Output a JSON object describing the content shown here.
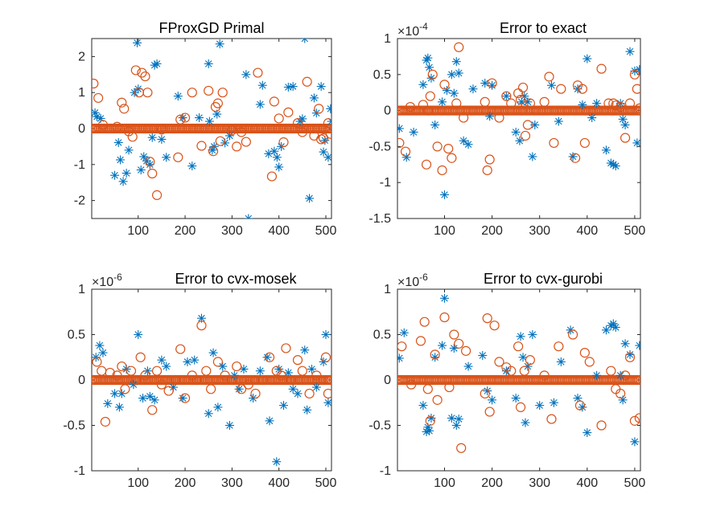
{
  "chart_data": [
    {
      "type": "scatter",
      "title": "FProxGD Primal",
      "exponent_label": "",
      "xlim": [
        1,
        512
      ],
      "ylim": [
        -2.5,
        2.5
      ],
      "xticks": [
        100,
        200,
        300,
        400,
        500
      ],
      "yticks": [
        -2,
        -1,
        0,
        1,
        2
      ],
      "ytick_labels": [
        "-2",
        "-1",
        "0",
        "1",
        "2"
      ],
      "series": [
        {
          "marker": "asterisk",
          "color": "#0072BD",
          "x": [
            8,
            12,
            20,
            50,
            58,
            62,
            68,
            75,
            80,
            92,
            98,
            100,
            106,
            112,
            118,
            125,
            130,
            135,
            140,
            150,
            160,
            185,
            195,
            215,
            230,
            250,
            252,
            258,
            262,
            268,
            274,
            285,
            295,
            330,
            335,
            360,
            365,
            378,
            390,
            396,
            400,
            405,
            420,
            430,
            445,
            450,
            455,
            465,
            475,
            480,
            490,
            495,
            498,
            505,
            510,
            512
          ],
          "y": [
            0.44,
            0.33,
            0.28,
            -1.3,
            -0.39,
            -0.87,
            -1.47,
            -1.24,
            -0.6,
            1.0,
            2.38,
            1.1,
            -1.15,
            -0.78,
            -0.9,
            -1.0,
            -0.25,
            1.76,
            1.8,
            -0.3,
            -0.8,
            0.9,
            0.3,
            -1.04,
            0.3,
            1.8,
            0.2,
            -0.6,
            -0.5,
            0.4,
            2.35,
            -0.4,
            -0.2,
            1.5,
            -2.5,
            0.67,
            1.2,
            -0.7,
            -0.63,
            -0.8,
            -1.07,
            -0.5,
            1.15,
            1.17,
            0.2,
            0.27,
            2.5,
            -1.94,
            0.85,
            0.43,
            1.17,
            -0.65,
            -0.33,
            -0.8,
            0.55,
            0.2
          ]
        },
        {
          "marker": "circle",
          "color": "#D95319",
          "x": [
            5,
            15,
            25,
            55,
            65,
            70,
            80,
            88,
            95,
            102,
            108,
            115,
            120,
            125,
            130,
            140,
            150,
            185,
            190,
            200,
            215,
            235,
            250,
            260,
            265,
            270,
            275,
            280,
            300,
            310,
            320,
            330,
            355,
            385,
            390,
            400,
            410,
            420,
            440,
            450,
            460,
            475,
            485,
            490,
            495,
            505,
            510
          ],
          "y": [
            1.25,
            0.85,
            0.1,
            0.05,
            0.72,
            0.55,
            -0.08,
            -0.23,
            1.62,
            1.0,
            1.55,
            1.45,
            1.0,
            -0.92,
            -1.25,
            -1.85,
            -0.03,
            -0.8,
            0.25,
            0.3,
            1.0,
            -0.48,
            1.05,
            -0.63,
            0.6,
            0.7,
            -0.35,
            1.0,
            -0.05,
            -0.5,
            -0.1,
            -0.37,
            1.55,
            -1.33,
            0.75,
            0.28,
            -0.38,
            0.45,
            0.15,
            -0.1,
            1.3,
            -0.2,
            0.55,
            -0.3,
            -0.27,
            0.15,
            -0.15
          ]
        }
      ]
    },
    {
      "type": "scatter",
      "title": "Error to exact",
      "exponent_label": "×10^-4",
      "xlim": [
        1,
        512
      ],
      "ylim": [
        -1.5,
        1
      ],
      "xticks": [
        100,
        200,
        300,
        400,
        500
      ],
      "yticks": [
        -1.5,
        -1,
        -0.5,
        0,
        0.5,
        1
      ],
      "ytick_labels": [
        "-1.5",
        "-1",
        "-0.5",
        "0",
        "0.5",
        "1"
      ],
      "series": [
        {
          "marker": "asterisk",
          "color": "#0072BD",
          "x": [
            5,
            20,
            35,
            55,
            62,
            65,
            68,
            72,
            80,
            95,
            100,
            105,
            115,
            120,
            125,
            130,
            140,
            150,
            160,
            185,
            195,
            200,
            230,
            250,
            258,
            262,
            268,
            275,
            285,
            290,
            325,
            340,
            370,
            380,
            390,
            400,
            410,
            420,
            440,
            450,
            455,
            460,
            470,
            475,
            480,
            490,
            500,
            505,
            510
          ],
          "y": [
            -0.25,
            -0.65,
            -0.3,
            0.36,
            0.7,
            0.73,
            0.6,
            0.45,
            -0.2,
            0.12,
            -1.17,
            0.28,
            0.5,
            0.24,
            0.68,
            0.52,
            -0.42,
            -0.47,
            0.3,
            0.38,
            -0.08,
            0.35,
            0.2,
            -0.3,
            -0.42,
            0.12,
            0.2,
            0.12,
            -0.64,
            -0.2,
            0.35,
            -0.15,
            -0.64,
            0.3,
            0.08,
            0.72,
            -0.1,
            0.1,
            -0.55,
            -0.73,
            -0.75,
            -0.77,
            0.1,
            -0.12,
            -0.2,
            0.82,
            0.55,
            -0.45,
            0.57
          ]
        },
        {
          "marker": "circle",
          "color": "#D95319",
          "x": [
            5,
            18,
            28,
            55,
            62,
            66,
            70,
            75,
            85,
            95,
            100,
            108,
            115,
            125,
            130,
            140,
            185,
            190,
            195,
            200,
            215,
            230,
            240,
            255,
            260,
            262,
            265,
            270,
            275,
            280,
            310,
            320,
            330,
            345,
            375,
            380,
            390,
            395,
            430,
            445,
            455,
            460,
            470,
            480,
            490,
            500,
            505,
            510
          ],
          "y": [
            -0.45,
            -0.57,
            0.05,
            0.08,
            -0.75,
            0.0,
            0.2,
            0.5,
            -0.5,
            -0.83,
            0.36,
            -0.53,
            -0.66,
            0.1,
            0.88,
            -0.1,
            0.12,
            -0.83,
            -0.68,
            0.38,
            -0.1,
            0.2,
            0.1,
            0.24,
            0.15,
            0.0,
            0.32,
            -0.35,
            -0.2,
            0.1,
            0.12,
            0.47,
            -0.45,
            0.3,
            -0.66,
            0.35,
            0.3,
            -0.45,
            0.58,
            0.1,
            0.1,
            0.07,
            0.05,
            -0.38,
            0.1,
            0.5,
            0.3,
            0.03
          ]
        }
      ]
    },
    {
      "type": "scatter",
      "title": "Error to cvx-mosek",
      "exponent_label": "×10^-6",
      "xlim": [
        1,
        512
      ],
      "ylim": [
        -1,
        1
      ],
      "xticks": [
        100,
        200,
        300,
        400,
        500
      ],
      "yticks": [
        -1,
        -0.5,
        0,
        0.5,
        1
      ],
      "ytick_labels": [
        "-1",
        "-0.5",
        "0",
        "0.5",
        "1"
      ],
      "series": [
        {
          "marker": "asterisk",
          "color": "#0072BD",
          "x": [
            10,
            18,
            25,
            35,
            50,
            60,
            65,
            75,
            90,
            100,
            110,
            120,
            125,
            135,
            150,
            160,
            175,
            195,
            205,
            220,
            235,
            250,
            260,
            270,
            280,
            295,
            305,
            315,
            325,
            345,
            360,
            375,
            380,
            395,
            400,
            410,
            420,
            430,
            440,
            455,
            460,
            470,
            480,
            495,
            500,
            505
          ],
          "y": [
            0.25,
            0.38,
            0.3,
            -0.26,
            -0.15,
            -0.3,
            -0.15,
            0.12,
            -0.05,
            0.5,
            -0.2,
            0.1,
            -0.18,
            -0.22,
            0.22,
            0.15,
            -0.08,
            -0.2,
            0.2,
            0.22,
            0.68,
            -0.37,
            0.3,
            -0.3,
            0.15,
            -0.5,
            0.05,
            -0.1,
            0.12,
            -0.2,
            0.1,
            0.25,
            -0.45,
            -0.9,
            0.12,
            -0.28,
            0.08,
            -0.1,
            -0.15,
            0.33,
            -0.33,
            0.12,
            -0.08,
            0.2,
            0.5,
            -0.25
          ]
        },
        {
          "marker": "circle",
          "color": "#D95319",
          "x": [
            12,
            22,
            30,
            40,
            55,
            65,
            72,
            85,
            95,
            105,
            115,
            130,
            140,
            150,
            165,
            180,
            190,
            200,
            215,
            225,
            235,
            245,
            255,
            270,
            285,
            300,
            310,
            320,
            335,
            350,
            365,
            380,
            395,
            405,
            415,
            425,
            440,
            450,
            465,
            480,
            490,
            500,
            505
          ],
          "y": [
            0.2,
            0.1,
            -0.46,
            0.08,
            0.05,
            0.15,
            -0.1,
            0.1,
            0.0,
            0.25,
            0.05,
            -0.33,
            0.1,
            -0.05,
            -0.12,
            0.0,
            0.34,
            -0.2,
            0.05,
            0.0,
            0.6,
            0.1,
            -0.1,
            0.2,
            0.05,
            0.0,
            0.15,
            -0.1,
            -0.05,
            -0.15,
            0.0,
            0.25,
            0.1,
            0.05,
            0.35,
            0.0,
            0.22,
            0.1,
            -0.15,
            0.05,
            0.0,
            0.25,
            -0.15
          ]
        }
      ]
    },
    {
      "type": "scatter",
      "title": "Error to cvx-gurobi",
      "exponent_label": "×10^-6",
      "xlim": [
        1,
        512
      ],
      "ylim": [
        -1,
        1
      ],
      "xticks": [
        100,
        200,
        300,
        400,
        500
      ],
      "yticks": [
        -1,
        -0.5,
        0,
        0.5,
        1
      ],
      "ytick_labels": [
        "-1",
        "-0.5",
        "0",
        "0.5",
        "1"
      ],
      "series": [
        {
          "marker": "asterisk",
          "color": "#0072BD",
          "x": [
            5,
            15,
            55,
            62,
            65,
            68,
            72,
            80,
            95,
            100,
            115,
            120,
            125,
            130,
            150,
            180,
            190,
            200,
            230,
            250,
            260,
            265,
            270,
            275,
            285,
            300,
            330,
            345,
            365,
            380,
            390,
            400,
            420,
            440,
            450,
            455,
            460,
            470,
            475,
            480,
            490,
            500,
            510
          ],
          "y": [
            0.24,
            0.52,
            -0.28,
            -0.57,
            -0.52,
            -0.56,
            -0.42,
            0.25,
            0.38,
            0.9,
            -0.42,
            0.35,
            -0.5,
            -0.43,
            0.15,
            0.27,
            -0.12,
            -0.22,
            0.1,
            -0.2,
            0.48,
            0.25,
            -0.47,
            0.15,
            0.5,
            -0.28,
            -0.25,
            0.2,
            0.55,
            -0.2,
            -0.3,
            -0.58,
            0.05,
            0.55,
            0.6,
            0.62,
            0.58,
            0.05,
            -0.22,
            0.4,
            0.28,
            -0.68,
            0.38
          ]
        },
        {
          "marker": "circle",
          "color": "#D95319",
          "x": [
            10,
            30,
            50,
            58,
            65,
            70,
            80,
            85,
            100,
            110,
            120,
            130,
            135,
            145,
            185,
            190,
            195,
            205,
            215,
            230,
            240,
            255,
            260,
            268,
            280,
            310,
            325,
            340,
            370,
            385,
            395,
            405,
            430,
            450,
            460,
            470,
            480,
            490,
            500,
            510
          ],
          "y": [
            0.37,
            -0.05,
            0.43,
            0.64,
            -0.1,
            -0.45,
            0.28,
            -0.22,
            0.69,
            -0.08,
            0.5,
            0.4,
            -0.75,
            0.32,
            -0.15,
            0.68,
            -0.35,
            0.6,
            0.2,
            0.14,
            0.1,
            0.37,
            -0.3,
            0.1,
            0.22,
            0.05,
            -0.43,
            0.37,
            0.5,
            -0.28,
            0.3,
            0.2,
            -0.5,
            0.1,
            -0.1,
            -0.15,
            0.05,
            0.25,
            -0.45,
            -0.42
          ]
        }
      ]
    }
  ]
}
